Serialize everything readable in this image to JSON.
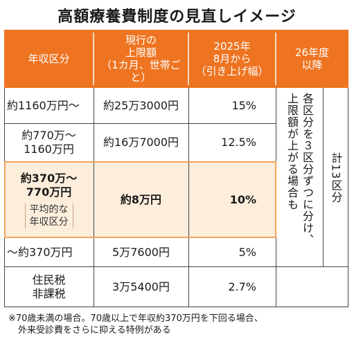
{
  "title": "高額療養費制度の見直しイメージ",
  "header": {
    "col1": "年収区分",
    "col2": [
      "現行の",
      "上限額",
      "（1カ月、世帯ごと）"
    ],
    "col3": [
      "2025年",
      "8月から",
      "（引き上げ幅）"
    ],
    "col4": [
      "26年度",
      "以降"
    ]
  },
  "rows": [
    {
      "income": [
        "約1160万円～"
      ],
      "current": "約25万3000円",
      "increase": "15%"
    },
    {
      "income": [
        "約770万～",
        "1160万円"
      ],
      "current": "約16万7000円",
      "increase": "12.5%"
    },
    {
      "income": [
        "約370万～",
        "770万円"
      ],
      "average_note": [
        "平均的な",
        "年収区分"
      ],
      "current": "約8万円",
      "increase": "10%"
    },
    {
      "income": [
        "～約370万円"
      ],
      "current": "5万7600円",
      "increase": "5%"
    },
    {
      "income": [
        "住民税",
        "非課税"
      ],
      "current": "3万5400円",
      "increase": "2.7%"
    }
  ],
  "future": {
    "split_text": [
      "各区分を３区分ずつに分け、",
      "上限額が上がる場合も"
    ],
    "total_text": "計13区分"
  },
  "footnote": [
    "※70歳未満の場合。70歳以上で年収約370万円を下回る場合、",
    "外来受診費をさらに抑える特例がある"
  ],
  "colors": {
    "header_bg": "#ee7421",
    "highlight_bg": "#fdeedc",
    "highlight_border": "#f2a45c",
    "grid_line": "#444444"
  }
}
